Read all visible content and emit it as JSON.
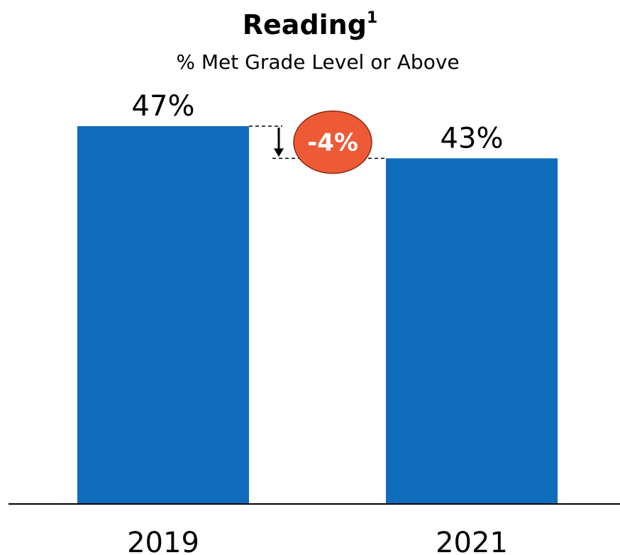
{
  "chart_data": {
    "type": "bar",
    "title": "Reading",
    "title_superscript": "1",
    "subtitle": "% Met Grade Level or Above",
    "categories": [
      "2019",
      "2021"
    ],
    "values": [
      47,
      43
    ],
    "value_labels": [
      "47%",
      "43%"
    ],
    "ylim": [
      0,
      47
    ],
    "grid": false,
    "legend": "none",
    "bar_color": "#0F6CBD",
    "annotation": {
      "label": "-4%",
      "from": 47,
      "to": 43,
      "color": "#EE5A36",
      "arrow": "down-arrow-icon"
    }
  }
}
